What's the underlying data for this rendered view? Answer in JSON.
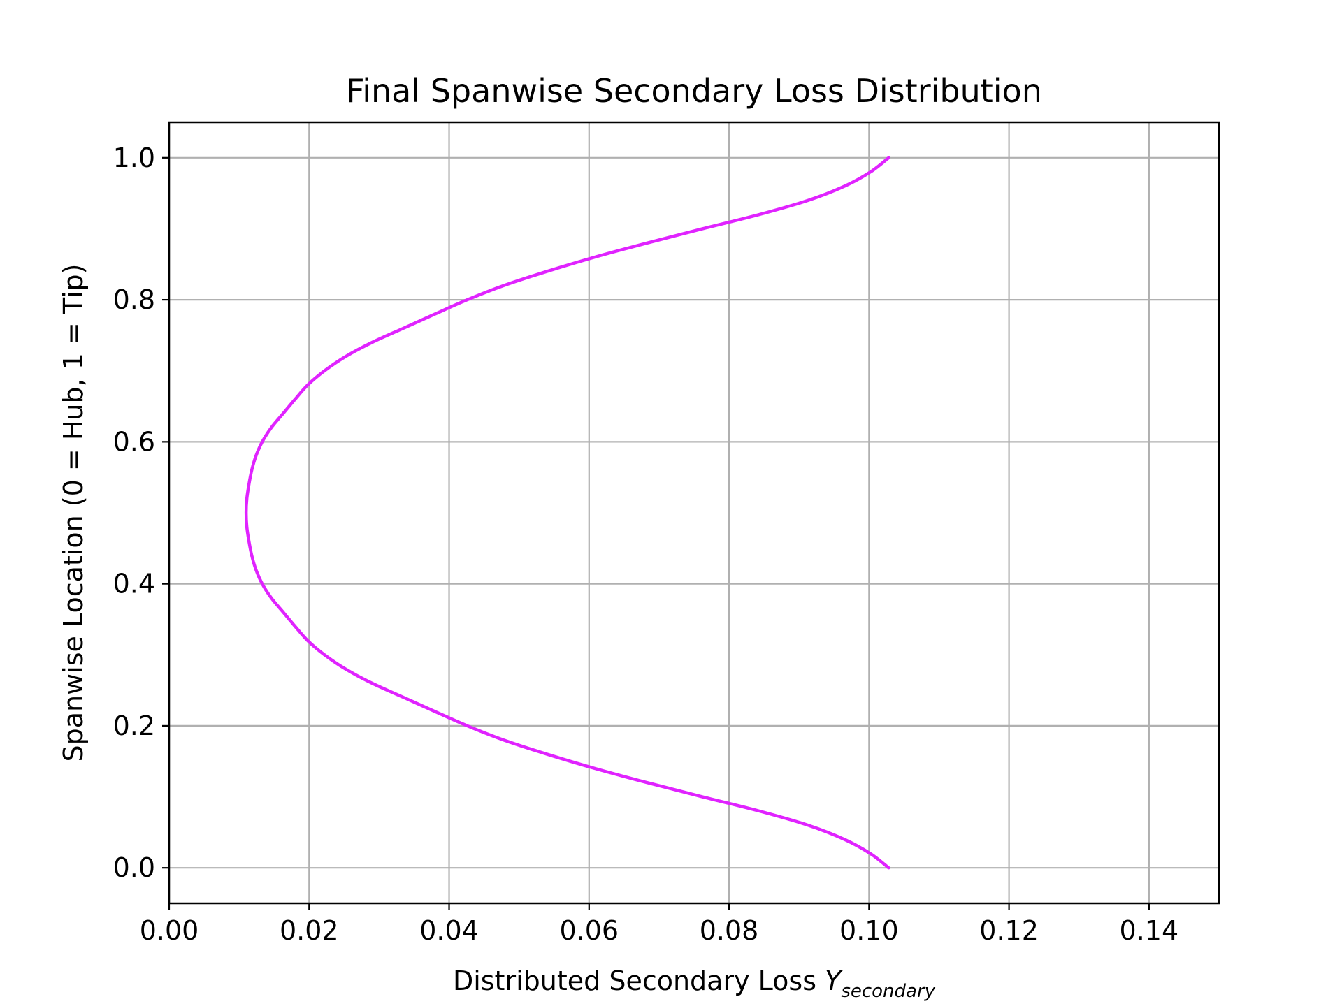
{
  "chart_data": {
    "type": "line",
    "title": "Final Spanwise Secondary Loss Distribution",
    "xlabel": "Distributed Secondary Loss",
    "xlabel_symbol": "Y",
    "xlabel_subscript": "secondary",
    "ylabel": "Spanwise Location (0 = Hub, 1 = Tip)",
    "xlim": [
      0.0,
      0.15
    ],
    "ylim": [
      -0.05,
      1.05
    ],
    "xticks": [
      0.0,
      0.02,
      0.04,
      0.06,
      0.08,
      0.1,
      0.12,
      0.14
    ],
    "xtick_labels": [
      "0.00",
      "0.02",
      "0.04",
      "0.06",
      "0.08",
      "0.10",
      "0.12",
      "0.14"
    ],
    "yticks": [
      0.0,
      0.2,
      0.4,
      0.6,
      0.8,
      1.0
    ],
    "ytick_labels": [
      "0.0",
      "0.2",
      "0.4",
      "0.6",
      "0.8",
      "1.0"
    ],
    "grid": true,
    "legend": false,
    "series": [
      {
        "color": "#e023ff",
        "x": [
          0.1028,
          0.1002,
          0.0965,
          0.0913,
          0.0843,
          0.0762,
          0.0683,
          0.0608,
          0.054,
          0.0478,
          0.0426,
          0.038,
          0.0335,
          0.029,
          0.0252,
          0.0222,
          0.0198,
          0.018,
          0.0163,
          0.0146,
          0.0133,
          0.0124,
          0.0118,
          0.0114,
          0.0111,
          0.011,
          0.0111,
          0.0114,
          0.0118,
          0.0124,
          0.0133,
          0.0146,
          0.0163,
          0.018,
          0.0198,
          0.0222,
          0.0252,
          0.029,
          0.0335,
          0.038,
          0.0426,
          0.0478,
          0.054,
          0.0608,
          0.0683,
          0.0762,
          0.0843,
          0.0913,
          0.0965,
          0.1002,
          0.1028
        ],
        "y": [
          0.0,
          0.02,
          0.04,
          0.06,
          0.08,
          0.1,
          0.12,
          0.14,
          0.16,
          0.18,
          0.2,
          0.22,
          0.24,
          0.26,
          0.28,
          0.3,
          0.32,
          0.34,
          0.36,
          0.38,
          0.4,
          0.42,
          0.44,
          0.46,
          0.48,
          0.5,
          0.52,
          0.54,
          0.56,
          0.58,
          0.6,
          0.62,
          0.64,
          0.66,
          0.68,
          0.7,
          0.72,
          0.74,
          0.76,
          0.78,
          0.8,
          0.82,
          0.84,
          0.86,
          0.88,
          0.9,
          0.92,
          0.94,
          0.96,
          0.98,
          1.0
        ]
      }
    ]
  }
}
